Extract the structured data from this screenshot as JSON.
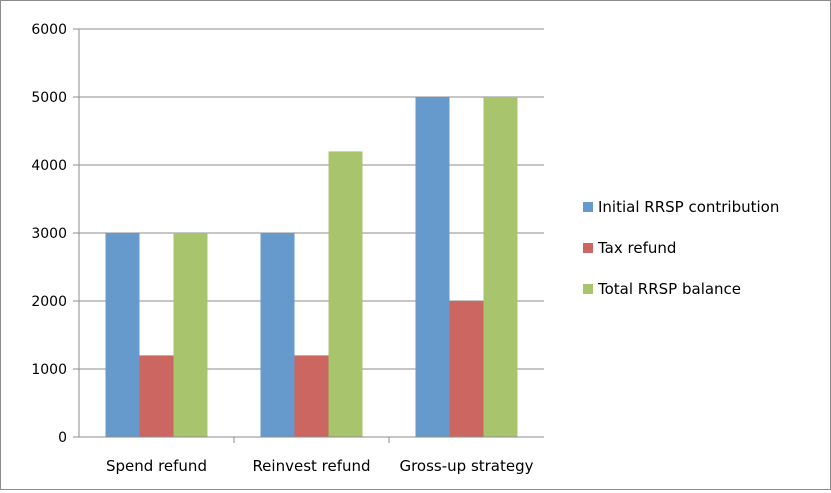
{
  "chart_data": {
    "type": "bar",
    "title": "",
    "xlabel": "",
    "ylabel": "",
    "ylim": [
      0,
      6000
    ],
    "yticks": [
      0,
      1000,
      2000,
      3000,
      4000,
      5000,
      6000
    ],
    "grid": true,
    "legend_position": "right",
    "categories": [
      "Spend refund",
      "Reinvest refund",
      "Gross-up strategy"
    ],
    "series": [
      {
        "name": "Initial RRSP contribution",
        "color": "#6699cc",
        "values": [
          3000,
          3000,
          5000
        ]
      },
      {
        "name": "Tax refund",
        "color": "#cc6660",
        "values": [
          1200,
          1200,
          2000
        ]
      },
      {
        "name": "Total RRSP balance",
        "color": "#a8c46c",
        "values": [
          3000,
          4200,
          5000
        ]
      }
    ]
  }
}
